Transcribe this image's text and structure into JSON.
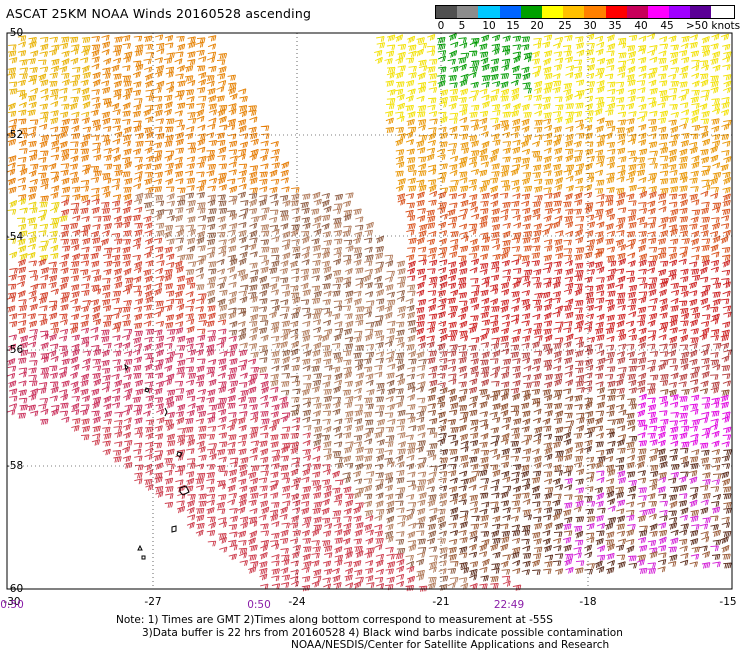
{
  "title": "ASCAT 25KM NOAA Winds 20160528 ascending",
  "legend": {
    "labels": [
      "0",
      "5",
      "10",
      "15",
      "20",
      "25",
      "30",
      "35",
      "40",
      "45",
      ">50 knots"
    ],
    "colors": [
      "#505050",
      "#8c8c8c",
      "#00c8ff",
      "#0064ff",
      "#00a000",
      "#ffff00",
      "#ffc000",
      "#ff8000",
      "#ff0000",
      "#c8005a",
      "#ff00ff",
      "#a000ff",
      "#5a0096"
    ]
  },
  "axes": {
    "lat_labels": [
      "-50",
      "-52",
      "-54",
      "-56",
      "-58",
      "-60"
    ],
    "lon_labels": [
      "-30",
      "-27",
      "-24",
      "-21",
      "-18",
      "-15"
    ]
  },
  "times": [
    "0:50",
    "0:50",
    "22:49"
  ],
  "notes": {
    "line1": "Note: 1) Times are GMT 2)Times along bottom correspond to measurement at -55S",
    "line2": "3)Data buffer is 22 hrs from 20160528 4) Black wind barbs indicate possible contamination",
    "line3": "NOAA/NESDIS/Center for Satellite Applications and Research"
  }
}
